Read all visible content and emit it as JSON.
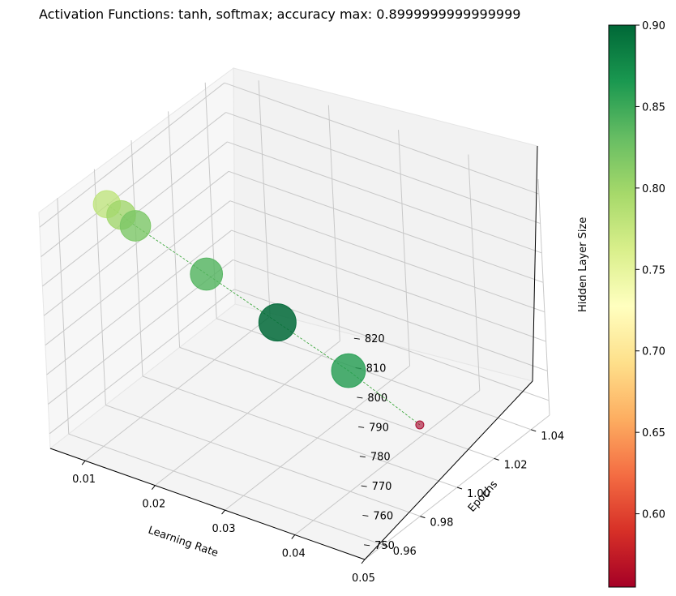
{
  "chart_data": {
    "type": "scatter",
    "title": "Activation Functions: tanh, softmax; accuracy max: 0.8999999999999999",
    "xlabel": "Learning Rate",
    "ylabel": "Epochs",
    "zlabel": "Hidden Layer Size",
    "x_ticks": [
      "0.01",
      "0.02",
      "0.03",
      "0.04",
      "0.05"
    ],
    "y_ticks": [
      "0.96",
      "0.98",
      "1.00",
      "1.02",
      "1.04"
    ],
    "z_ticks": [
      "750",
      "760",
      "770",
      "780",
      "790",
      "800",
      "810",
      "820"
    ],
    "colorbar": {
      "ticks": [
        "0.60",
        "0.65",
        "0.70",
        "0.75",
        "0.80",
        "0.85",
        "0.90"
      ],
      "min": 0.555,
      "max": 0.9,
      "colormap": "RdYlGn"
    },
    "grid": true,
    "line_color": "#2ca02c",
    "points": [
      {
        "learning_rate": 0.001,
        "epochs": 1.0,
        "hidden_layer_size": 800,
        "accuracy": 0.78
      },
      {
        "learning_rate": 0.003,
        "epochs": 1.0,
        "hidden_layer_size": 798,
        "accuracy": 0.8
      },
      {
        "learning_rate": 0.005,
        "epochs": 1.0,
        "hidden_layer_size": 796,
        "accuracy": 0.82
      },
      {
        "learning_rate": 0.015,
        "epochs": 1.0,
        "hidden_layer_size": 788,
        "accuracy": 0.84
      },
      {
        "learning_rate": 0.025,
        "epochs": 1.0,
        "hidden_layer_size": 780,
        "accuracy": 0.9
      },
      {
        "learning_rate": 0.035,
        "epochs": 1.0,
        "hidden_layer_size": 772,
        "accuracy": 0.86
      },
      {
        "learning_rate": 0.045,
        "epochs": 1.0,
        "hidden_layer_size": 762,
        "accuracy": 0.555
      }
    ]
  }
}
